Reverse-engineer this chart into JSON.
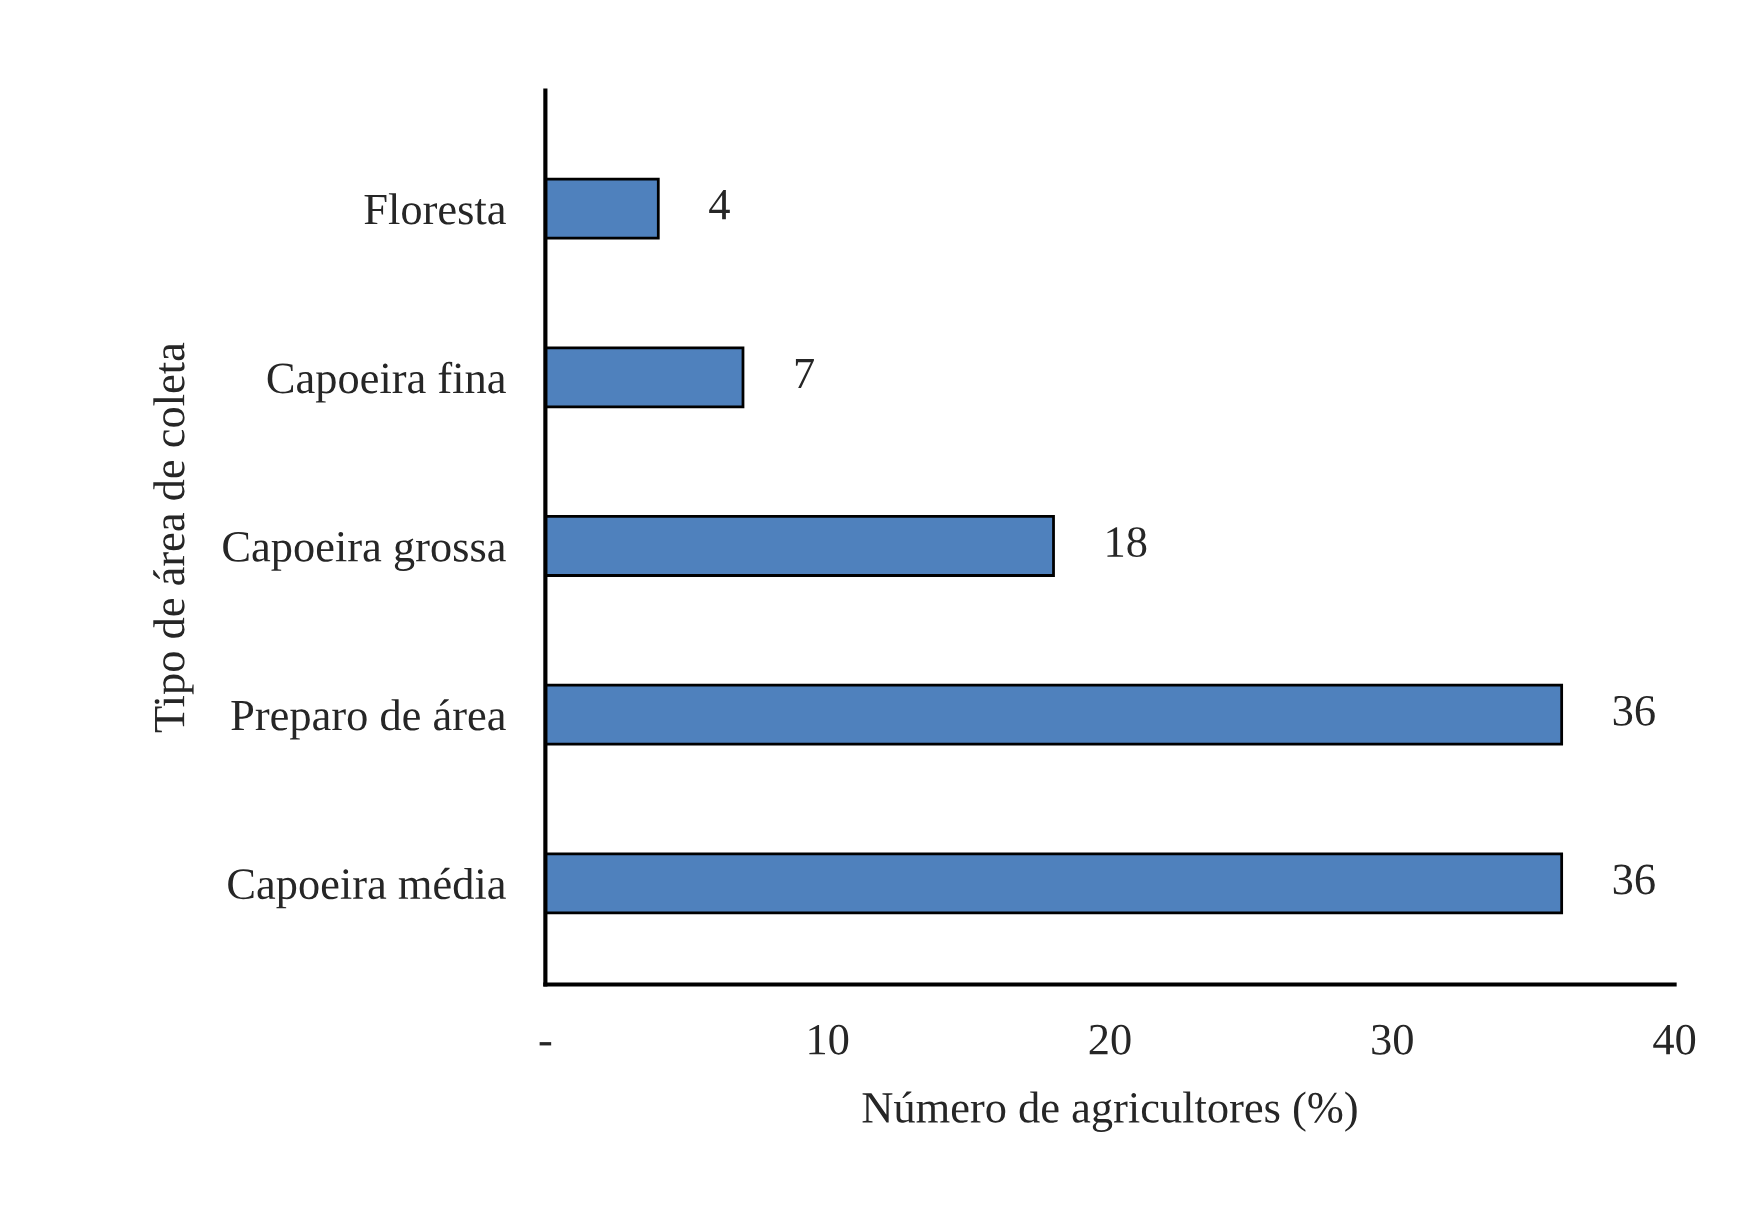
{
  "chart_data": {
    "type": "bar",
    "orientation": "horizontal",
    "xlabel": "Número de agricultores (%)",
    "ylabel": "Tipo de área de coleta",
    "categories": [
      "Floresta",
      "Capoeira fina",
      "Capoeira grossa",
      "Preparo de área",
      "Capoeira média"
    ],
    "values": [
      4,
      7,
      18,
      36,
      36
    ],
    "color": "#4f81bd",
    "data_labels": true,
    "xlim": [
      0,
      40
    ],
    "xticks": [
      {
        "value": 0,
        "label": "-"
      },
      10,
      20,
      30,
      40
    ],
    "grid": false,
    "legend": false
  }
}
